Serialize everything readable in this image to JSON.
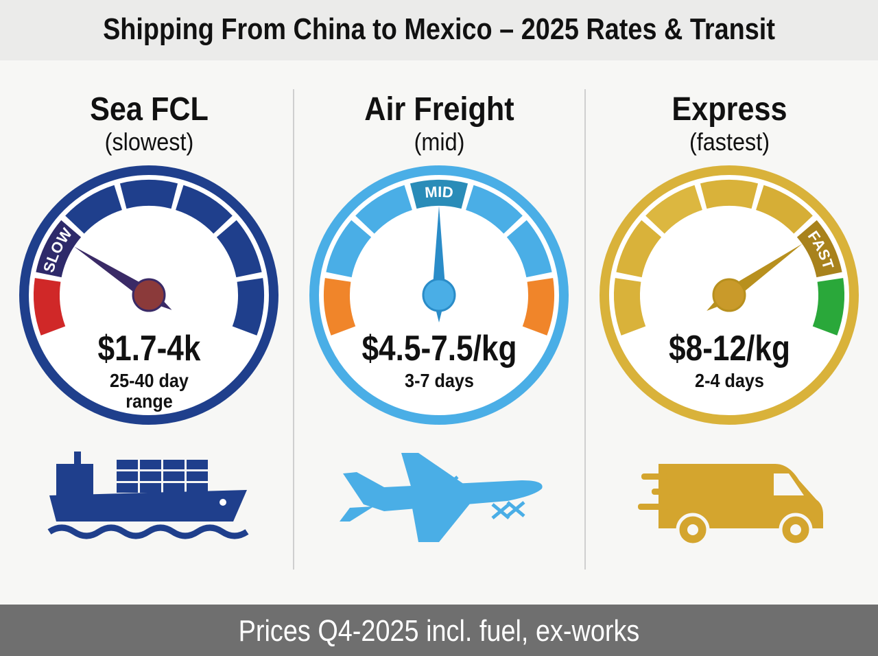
{
  "header": {
    "title": "Shipping From China to Mexico – 2025 Rates & Transit"
  },
  "columns": [
    {
      "title": "Sea FCL",
      "subtitle": "(slowest)",
      "gauge_label": "SLOW",
      "price": "$1.7-4k",
      "transit": "25-40 day range"
    },
    {
      "title": "Air Freight",
      "subtitle": "(mid)",
      "gauge_label": "MID",
      "price": "$4.5-7.5/kg",
      "transit": "3-7 days"
    },
    {
      "title": "Express",
      "subtitle": "(fastest)",
      "gauge_label": "FAST",
      "price": "$8-12/kg",
      "transit": "2-4 days"
    }
  ],
  "footer": {
    "text": "Prices Q4-2025 incl. fuel, ex-works"
  }
}
